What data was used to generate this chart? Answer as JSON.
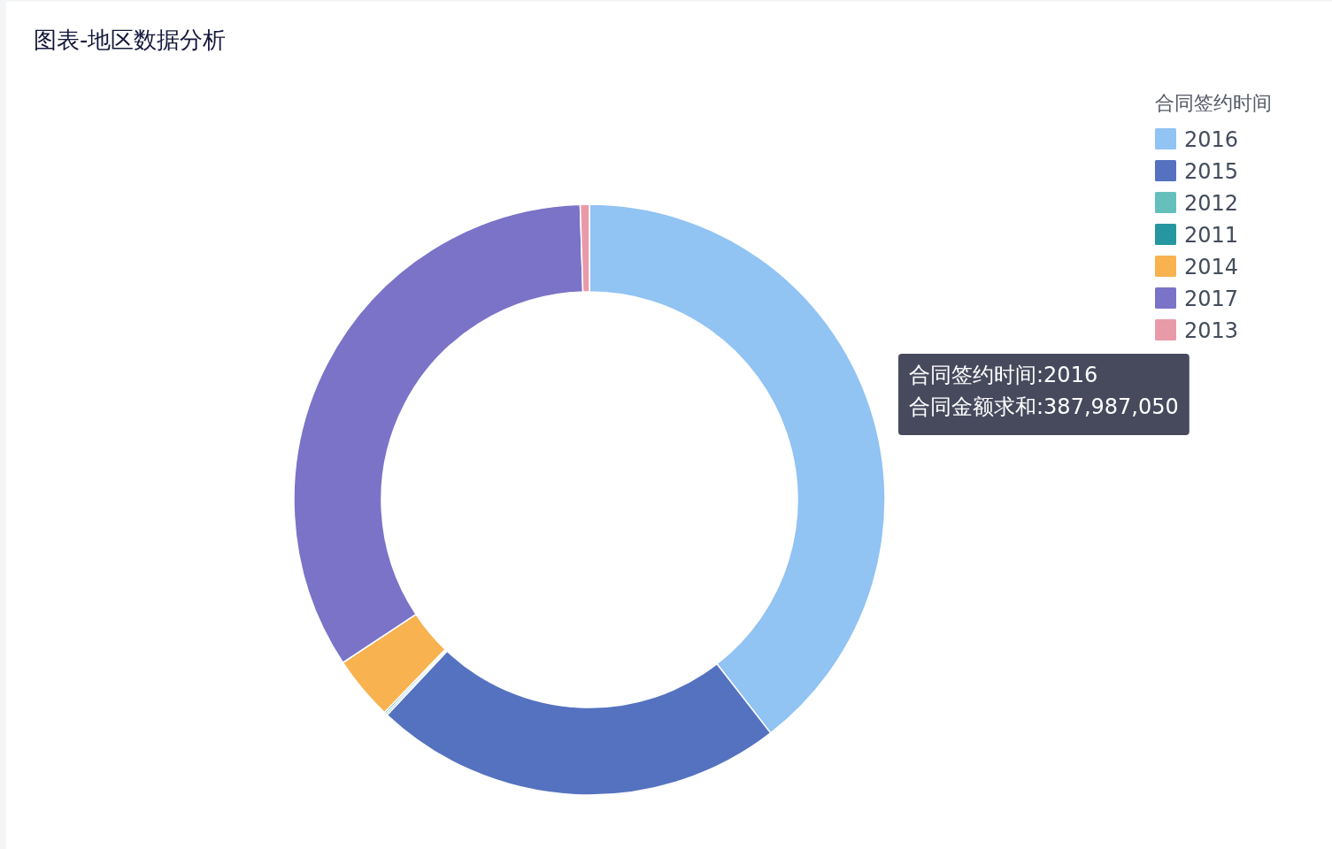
{
  "chart_data": {
    "type": "donut",
    "title": "图表-地区数据分析",
    "legend_title": "合同签约时间",
    "categories": [
      "2016",
      "2015",
      "2012",
      "2011",
      "2014",
      "2017",
      "2013"
    ],
    "values": [
      39.5,
      22.5,
      0.1,
      0.1,
      3.5,
      33.8,
      0.5
    ],
    "colors": [
      "#91c3f3",
      "#5572c0",
      "#65c0bb",
      "#2696a0",
      "#f8b24f",
      "#7b73c7",
      "#e99aa8"
    ],
    "legend": "top right",
    "annotations": [
      "合同签约时间:2016",
      "合同金额求和:387,987,050"
    ]
  }
}
